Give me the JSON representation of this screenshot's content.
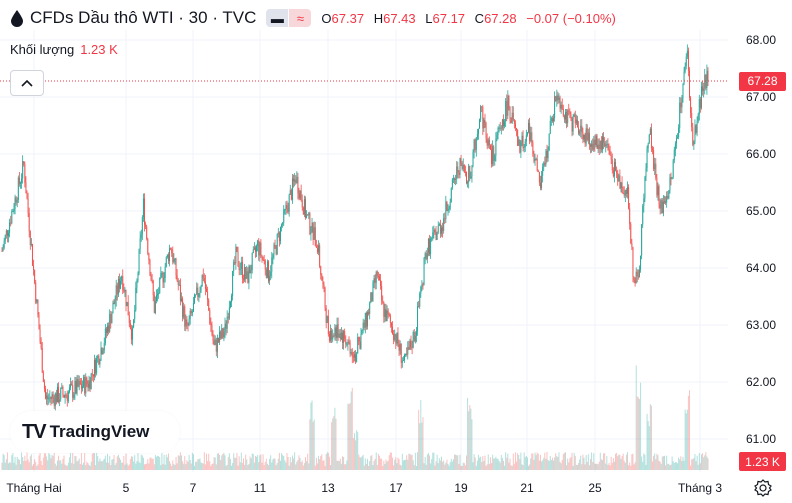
{
  "header": {
    "title": "CFDs Dầu thô WTI · 30 · TVC",
    "ohlc": [
      {
        "label": "O",
        "value": "67.37"
      },
      {
        "label": "H",
        "value": "67.43"
      },
      {
        "label": "L",
        "value": "67.17"
      },
      {
        "label": "C",
        "value": "67.28"
      }
    ],
    "change": "−0.07 (−0.10%)",
    "legend_icon_left": "minus-icon",
    "legend_icon_right": "approx-icon"
  },
  "volume": {
    "label": "Khối lượng",
    "value": "1.23 K"
  },
  "logo": {
    "mark": "TV",
    "text": "TradingView"
  },
  "price_label": "67.28",
  "volume_label": "1.23 K",
  "colors": {
    "up": "#26a69a",
    "down": "#ef5350",
    "accent": "#f23645",
    "grid": "#f0f3fa"
  },
  "chart_data": {
    "type": "candlestick",
    "y_ticks": [
      "68.00",
      "67.00",
      "66.00",
      "65.00",
      "64.00",
      "63.00",
      "62.00",
      "61.00"
    ],
    "x_ticks": [
      "Tháng Hai",
      "5",
      "7",
      "11",
      "13",
      "17",
      "19",
      "21",
      "25",
      "Tháng 3"
    ],
    "ylim": [
      60.7,
      68.2
    ],
    "last_price": 67.28,
    "close_path": [
      [
        0,
        64.3
      ],
      [
        4,
        65.8
      ],
      [
        8,
        61.7
      ],
      [
        12,
        61.8
      ],
      [
        16,
        62.0
      ],
      [
        19,
        62.8
      ],
      [
        22,
        63.9
      ],
      [
        24,
        62.8
      ],
      [
        26,
        65.1
      ],
      [
        28,
        63.3
      ],
      [
        31,
        64.4
      ],
      [
        34,
        62.9
      ],
      [
        37,
        63.9
      ],
      [
        39,
        62.6
      ],
      [
        41,
        62.9
      ],
      [
        43,
        64.2
      ],
      [
        45,
        63.8
      ],
      [
        47,
        64.4
      ],
      [
        49,
        63.9
      ],
      [
        51,
        64.6
      ],
      [
        54,
        65.6
      ],
      [
        56,
        64.9
      ],
      [
        58,
        64.4
      ],
      [
        60,
        62.9
      ],
      [
        62,
        62.9
      ],
      [
        65,
        62.5
      ],
      [
        67,
        63.1
      ],
      [
        69,
        63.9
      ],
      [
        70,
        63.3
      ],
      [
        72,
        62.9
      ],
      [
        74,
        62.3
      ],
      [
        76,
        62.9
      ],
      [
        78,
        64.3
      ],
      [
        81,
        64.8
      ],
      [
        84,
        65.8
      ],
      [
        86,
        65.6
      ],
      [
        88,
        66.8
      ],
      [
        90,
        65.9
      ],
      [
        93,
        66.9
      ],
      [
        95,
        66.1
      ],
      [
        97,
        66.4
      ],
      [
        99,
        65.4
      ],
      [
        102,
        67.1
      ],
      [
        104,
        66.6
      ],
      [
        106,
        66.5
      ],
      [
        108,
        66.2
      ],
      [
        111,
        66.2
      ],
      [
        113,
        65.6
      ],
      [
        115,
        65.3
      ],
      [
        116,
        64.0
      ],
      [
        117,
        63.7
      ],
      [
        118,
        65.3
      ],
      [
        119,
        66.5
      ],
      [
        121,
        65.0
      ],
      [
        123,
        65.5
      ],
      [
        125,
        67.1
      ],
      [
        126,
        67.7
      ],
      [
        127,
        66.1
      ],
      [
        129,
        67.3
      ]
    ],
    "volume_spikes": [
      [
        57,
        0.5
      ],
      [
        61,
        0.45
      ],
      [
        64,
        0.55
      ],
      [
        65,
        0.3
      ],
      [
        77,
        0.5
      ],
      [
        86,
        0.55
      ],
      [
        117,
        0.7
      ],
      [
        119,
        0.45
      ],
      [
        126,
        0.6
      ]
    ]
  }
}
